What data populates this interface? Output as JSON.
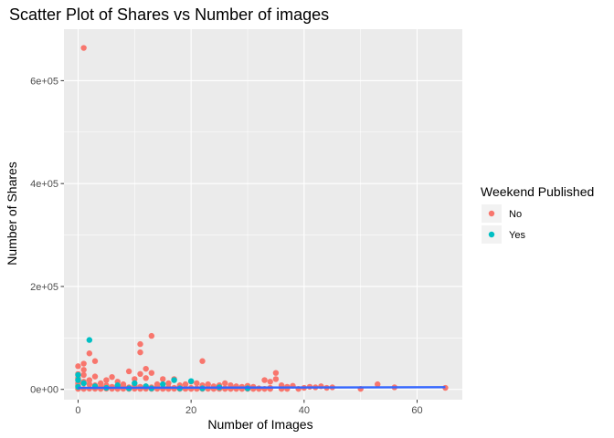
{
  "chart_data": {
    "type": "scatter",
    "title": "Scatter Plot of Shares vs Number of images",
    "xlabel": "Number of Images",
    "ylabel": "Number of Shares",
    "xlim": [
      -2.5,
      68
    ],
    "ylim": [
      -20000,
      700000
    ],
    "x_ticks": [
      0,
      20,
      40,
      60
    ],
    "x_tick_labels": [
      "0",
      "20",
      "40",
      "60"
    ],
    "y_ticks": [
      0,
      200000,
      400000,
      600000
    ],
    "y_tick_labels": [
      "0e+00",
      "2e+05",
      "4e+05",
      "6e+05"
    ],
    "grid": true,
    "legend": {
      "title": "Weekend Published",
      "placement": "right",
      "entries": [
        {
          "label": "No",
          "color": "#F8766D"
        },
        {
          "label": "Yes",
          "color": "#00BFC4"
        }
      ]
    },
    "trend_line": {
      "color": "#3366FF",
      "x": [
        0,
        65
      ],
      "y": [
        3000,
        4200
      ]
    },
    "series": [
      {
        "name": "No",
        "color": "#F8766D",
        "points": [
          [
            1,
            663600
          ],
          [
            13,
            104000
          ],
          [
            11,
            88000
          ],
          [
            2,
            70000
          ],
          [
            22,
            55000
          ],
          [
            11,
            72000
          ],
          [
            12,
            40000
          ],
          [
            0,
            30000
          ],
          [
            0,
            45000
          ],
          [
            1,
            50000
          ],
          [
            3,
            55000
          ],
          [
            0,
            22000
          ],
          [
            0,
            12000
          ],
          [
            1,
            38000
          ],
          [
            1,
            28000
          ],
          [
            2,
            18000
          ],
          [
            3,
            25000
          ],
          [
            4,
            12000
          ],
          [
            5,
            18000
          ],
          [
            6,
            24000
          ],
          [
            7,
            15000
          ],
          [
            8,
            10000
          ],
          [
            9,
            35000
          ],
          [
            10,
            20000
          ],
          [
            11,
            30000
          ],
          [
            12,
            22000
          ],
          [
            13,
            32000
          ],
          [
            14,
            10000
          ],
          [
            15,
            20000
          ],
          [
            16,
            12000
          ],
          [
            17,
            20000
          ],
          [
            18,
            8000
          ],
          [
            19,
            10000
          ],
          [
            20,
            15000
          ],
          [
            21,
            12000
          ],
          [
            22,
            8000
          ],
          [
            23,
            10000
          ],
          [
            24,
            6000
          ],
          [
            25,
            8000
          ],
          [
            26,
            12000
          ],
          [
            27,
            8000
          ],
          [
            28,
            6000
          ],
          [
            29,
            5000
          ],
          [
            30,
            7000
          ],
          [
            31,
            5000
          ],
          [
            33,
            18000
          ],
          [
            34,
            15000
          ],
          [
            35,
            32000
          ],
          [
            35,
            20000
          ],
          [
            36,
            8000
          ],
          [
            37,
            5000
          ],
          [
            38,
            7000
          ],
          [
            40,
            3000
          ],
          [
            41,
            5000
          ],
          [
            42,
            4000
          ],
          [
            43,
            6000
          ],
          [
            44,
            3000
          ],
          [
            45,
            4000
          ],
          [
            53,
            10000
          ],
          [
            56,
            4000
          ],
          [
            65,
            3000
          ],
          [
            0,
            8000
          ],
          [
            1,
            15000
          ],
          [
            2,
            10000
          ],
          [
            3,
            8000
          ],
          [
            4,
            5000
          ],
          [
            5,
            8000
          ],
          [
            6,
            5000
          ],
          [
            7,
            4000
          ],
          [
            8,
            6000
          ],
          [
            9,
            4000
          ],
          [
            10,
            8000
          ],
          [
            11,
            5000
          ],
          [
            12,
            6000
          ],
          [
            13,
            4000
          ],
          [
            14,
            5000
          ],
          [
            15,
            3000
          ],
          [
            16,
            4000
          ],
          [
            17,
            3000
          ],
          [
            18,
            4000
          ],
          [
            19,
            2000
          ],
          [
            20,
            3000
          ],
          [
            21,
            2000
          ],
          [
            22,
            3000
          ],
          [
            23,
            2000
          ],
          [
            24,
            2000
          ],
          [
            25,
            3000
          ],
          [
            26,
            2000
          ],
          [
            27,
            1500
          ],
          [
            28,
            2000
          ],
          [
            29,
            1500
          ],
          [
            32,
            2000
          ],
          [
            34,
            3000
          ],
          [
            36,
            2000
          ],
          [
            0,
            1000
          ],
          [
            1,
            1000
          ],
          [
            2,
            1500
          ],
          [
            3,
            1200
          ],
          [
            4,
            1000
          ],
          [
            5,
            1500
          ],
          [
            6,
            1200
          ],
          [
            7,
            1000
          ],
          [
            8,
            1200
          ],
          [
            9,
            1000
          ],
          [
            10,
            1300
          ],
          [
            11,
            1100
          ],
          [
            12,
            1200
          ],
          [
            13,
            1000
          ],
          [
            14,
            1200
          ],
          [
            15,
            1100
          ],
          [
            16,
            1000
          ],
          [
            17,
            1200
          ],
          [
            18,
            1000
          ],
          [
            19,
            1100
          ],
          [
            20,
            1000
          ],
          [
            21,
            1100
          ],
          [
            22,
            1000
          ],
          [
            23,
            1200
          ],
          [
            24,
            1000
          ],
          [
            25,
            1100
          ],
          [
            26,
            1000
          ],
          [
            27,
            1000
          ],
          [
            28,
            1000
          ],
          [
            29,
            1000
          ],
          [
            30,
            1000
          ],
          [
            31,
            1000
          ],
          [
            32,
            1000
          ],
          [
            33,
            1000
          ],
          [
            34,
            1000
          ],
          [
            36,
            1000
          ],
          [
            37,
            1000
          ],
          [
            39,
            1000
          ],
          [
            50,
            1000
          ]
        ]
      },
      {
        "name": "Yes",
        "color": "#00BFC4",
        "points": [
          [
            2,
            96000
          ],
          [
            0,
            28000
          ],
          [
            0,
            18000
          ],
          [
            1,
            12000
          ],
          [
            3,
            6000
          ],
          [
            7,
            8000
          ],
          [
            10,
            12000
          ],
          [
            12,
            6000
          ],
          [
            15,
            10000
          ],
          [
            17,
            18000
          ],
          [
            20,
            16000
          ],
          [
            13,
            2000
          ],
          [
            25,
            4000
          ],
          [
            30,
            2000
          ],
          [
            0,
            5000
          ],
          [
            5,
            3000
          ],
          [
            9,
            2000
          ],
          [
            18,
            2000
          ],
          [
            22,
            2000
          ]
        ]
      }
    ]
  }
}
